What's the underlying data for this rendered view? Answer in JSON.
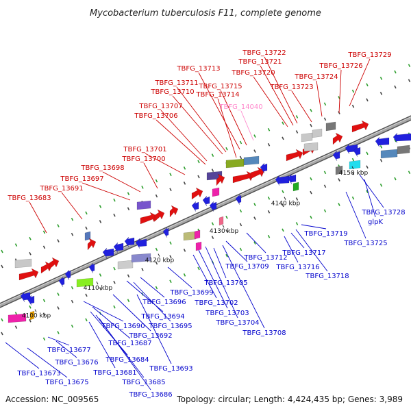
{
  "title": "Mycobacterium tuberculosis F11, complete genome",
  "accession": "Accession: NC_009565",
  "summary": "Topology: circular; Length: 4,424,435 bp; Genes: 3,989",
  "colors": {
    "forward_label": "#cc0000",
    "reverse_label": "#0000cc",
    "highlight_label": "#ff88cc",
    "axis": "#8a8a8a",
    "tick": "#2e9e2e"
  },
  "kbp_ticks": [
    "4100 kbp",
    "4110 kbp",
    "4120 kbp",
    "4130 kbp",
    "4140 kbp",
    "4150 kbp"
  ],
  "top_labels": [
    "TBFG_13683",
    "TBFG_13691",
    "TBFG_13697",
    "TBFG_13698",
    "TBFG_13700",
    "TBFG_13701",
    "TBFG_13706",
    "TBFG_13707",
    "TBFG_13710",
    "TBFG_13711",
    "TBFG_13713",
    "TBFG_13715",
    "TBFG_13714",
    "TBFG_14040",
    "TBFG_13720",
    "TBFG_13721",
    "TBFG_13722",
    "TBFG_13723",
    "TBFG_13724",
    "TBFG_13726",
    "TBFG_13729"
  ],
  "bottom_labels": [
    "TBFG_13673",
    "TBFG_13675",
    "TBFG_13676",
    "TBFG_13677",
    "TBFG_13681",
    "TBFG_13684",
    "TBFG_13685",
    "TBFG_13686",
    "TBFG_13687",
    "TBFG_13690",
    "TBFG_13692",
    "TBFG_13693",
    "TBFG_13694",
    "TBFG_13695",
    "TBFG_13696",
    "TBFG_13699",
    "TBFG_13702",
    "TBFG_13703",
    "TBFG_13704",
    "TBFG_13705",
    "TBFG_13708",
    "TBFG_13709",
    "TBFG_13712",
    "TBFG_13716",
    "TBFG_13717",
    "TBFG_13718",
    "TBFG_13719",
    "TBFG_13725",
    "TBFG_13728",
    "glpK"
  ]
}
